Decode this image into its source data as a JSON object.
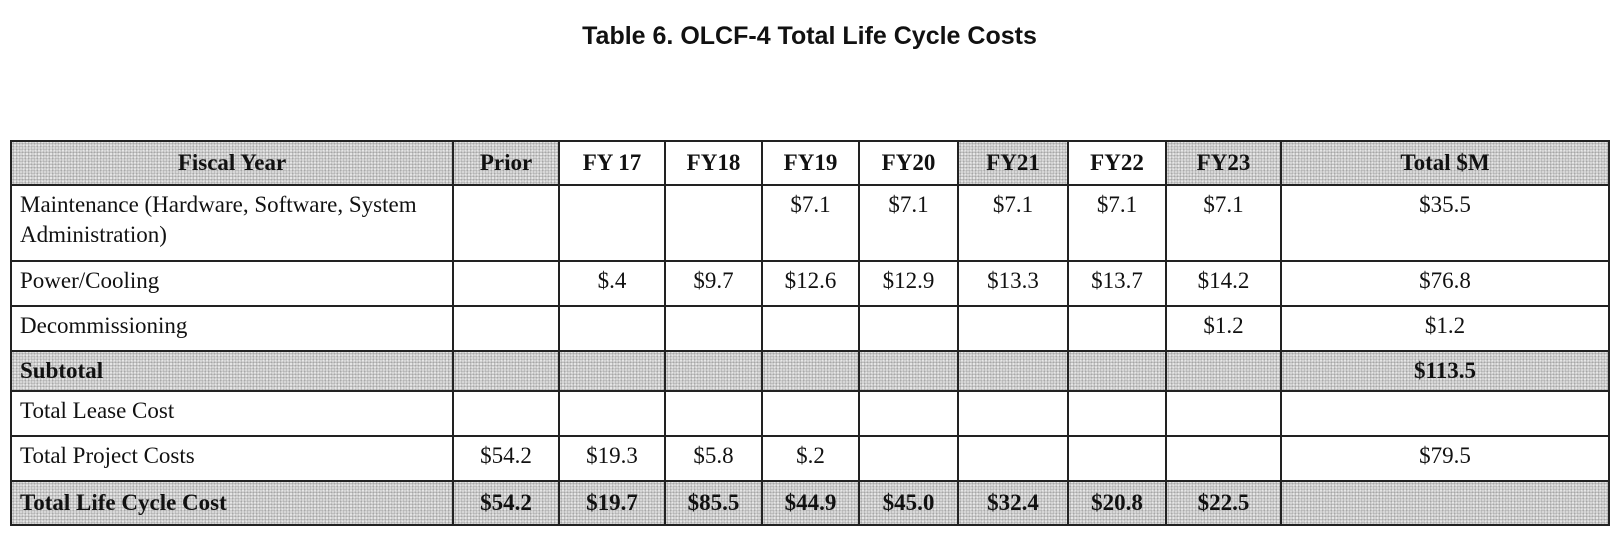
{
  "title": "Table 6. OLCF-4 Total Life Cycle Costs",
  "table": {
    "headers": [
      "Fiscal Year",
      "Prior",
      "FY 17",
      "FY18",
      "FY19",
      "FY20",
      "FY21",
      "FY22",
      "FY23",
      "Total $M"
    ],
    "rows": [
      {
        "label": "Maintenance (Hardware, Software, System Administration)",
        "cells": [
          "",
          "",
          "",
          "$7.1",
          "$7.1",
          "$7.1",
          "$7.1",
          "$7.1",
          "$35.5"
        ]
      },
      {
        "label": "Power/Cooling",
        "cells": [
          "",
          "$.4",
          "$9.7",
          "$12.6",
          "$12.9",
          "$13.3",
          "$13.7",
          "$14.2",
          "$76.8"
        ]
      },
      {
        "label": "Decommissioning",
        "cells": [
          "",
          "",
          "",
          "",
          "",
          "",
          "",
          "$1.2",
          "$1.2"
        ]
      },
      {
        "label": "Subtotal",
        "cells": [
          "",
          "",
          "",
          "",
          "",
          "",
          "",
          "",
          "$113.5"
        ]
      },
      {
        "label": "Total Lease Cost",
        "cells": [
          "",
          "",
          "",
          "",
          "",
          "",
          "",
          "",
          ""
        ]
      },
      {
        "label": "Total Project Costs",
        "cells": [
          "$54.2",
          "$19.3",
          "$5.8",
          "$.2",
          "",
          "",
          "",
          "",
          "$79.5"
        ]
      },
      {
        "label": "Total Life Cycle Cost",
        "cells": [
          "$54.2",
          "$19.7",
          "$85.5",
          "$44.9",
          "$45.0",
          "$32.4",
          "$20.8",
          "$22.5",
          ""
        ]
      }
    ]
  }
}
